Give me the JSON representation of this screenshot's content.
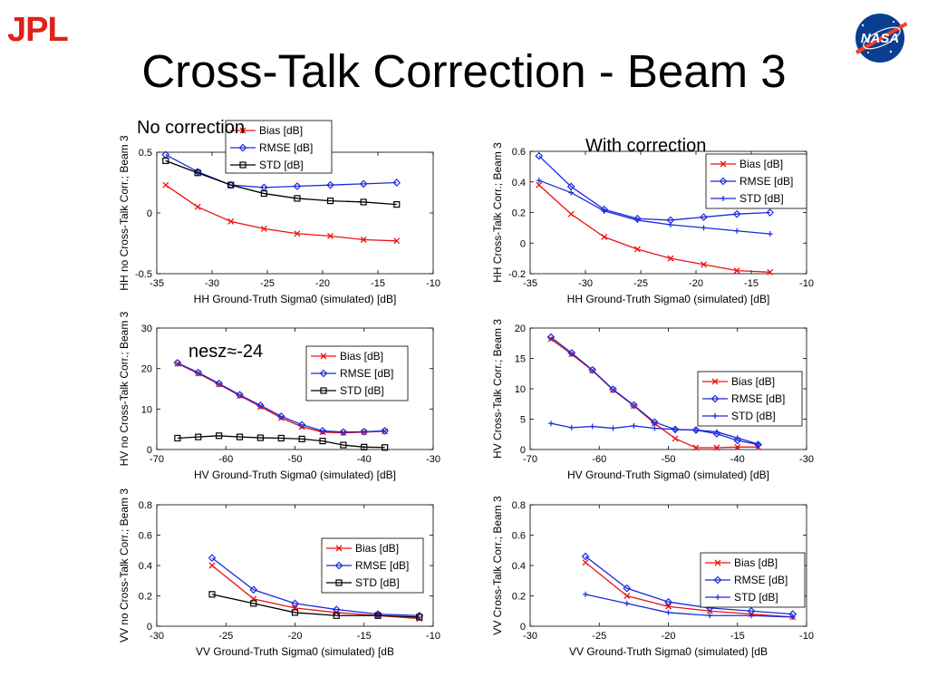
{
  "slide": {
    "title": "Cross-Talk Correction - Beam 3",
    "logos": {
      "left": "JPL",
      "right": "NASA"
    },
    "captions": {
      "no_correction": "No correction",
      "with_correction": "With correction",
      "nesz": "nesz≈-24"
    }
  },
  "colors": {
    "bias": "#ee1111",
    "rmse": "#1a2bdc",
    "std_black": "#000000",
    "std_blue": "#1a2bdc"
  },
  "chart_data": [
    {
      "id": "hh-no",
      "type": "line",
      "xlabel": "HH Ground-Truth Sigma0 (simulated) [dB]",
      "ylabel": "HH no Cross-Talk Corr.; Beam 3",
      "xlim": [
        -35,
        -10
      ],
      "ylim": [
        -0.5,
        0.5
      ],
      "xticks": [
        -35,
        -30,
        -25,
        -20,
        -15,
        -10
      ],
      "xticklabels": [
        "-35",
        "-30",
        "-25",
        "-20",
        "-15",
        "-10"
      ],
      "yticks": [
        -0.5,
        0,
        0.5
      ],
      "yticklabels": [
        "-0.5",
        "0",
        "0.5"
      ],
      "legend": "top",
      "series": [
        {
          "name": "Bias [dB]",
          "color": "#ee1111",
          "marker": "x",
          "x": [
            -34.2,
            -31.3,
            -28.3,
            -25.3,
            -22.3,
            -19.3,
            -16.3,
            -13.3
          ],
          "y": [
            0.23,
            0.05,
            -0.07,
            -0.13,
            -0.17,
            -0.19,
            -0.22,
            -0.23
          ]
        },
        {
          "name": "RMSE [dB]",
          "color": "#1a2bdc",
          "marker": "diamond",
          "x": [
            -34.2,
            -31.3,
            -28.3,
            -25.3,
            -22.3,
            -19.3,
            -16.3,
            -13.3
          ],
          "y": [
            0.48,
            0.34,
            0.23,
            0.21,
            0.22,
            0.23,
            0.24,
            0.25
          ]
        },
        {
          "name": "STD [dB]",
          "color": "#000000",
          "marker": "square",
          "x": [
            -34.2,
            -31.3,
            -28.3,
            -25.3,
            -22.3,
            -19.3,
            -16.3,
            -13.3
          ],
          "y": [
            0.43,
            0.33,
            0.23,
            0.16,
            0.12,
            0.1,
            0.09,
            0.07
          ]
        }
      ]
    },
    {
      "id": "hh-with",
      "type": "line",
      "xlabel": "HH Ground-Truth Sigma0 (simulated) [dB]",
      "ylabel": "HH Cross-Talk Corr.; Beam 3",
      "xlim": [
        -35,
        -10
      ],
      "ylim": [
        -0.2,
        0.6
      ],
      "xticks": [
        -35,
        -30,
        -25,
        -20,
        -15,
        -10
      ],
      "xticklabels": [
        "-35",
        "-30",
        "-25",
        "-20",
        "-15",
        "-10"
      ],
      "yticks": [
        -0.2,
        0,
        0.2,
        0.4,
        0.6
      ],
      "yticklabels": [
        "-0.2",
        "0",
        "0.2",
        "0.4",
        "0.6"
      ],
      "legend": "top-right",
      "series": [
        {
          "name": "Bias [dB]",
          "color": "#ee1111",
          "marker": "x",
          "x": [
            -34.2,
            -31.3,
            -28.3,
            -25.3,
            -22.3,
            -19.3,
            -16.3,
            -13.3
          ],
          "y": [
            0.38,
            0.19,
            0.04,
            -0.04,
            -0.1,
            -0.14,
            -0.18,
            -0.19
          ]
        },
        {
          "name": "RMSE [dB]",
          "color": "#1a2bdc",
          "marker": "diamond",
          "x": [
            -34.2,
            -31.3,
            -28.3,
            -25.3,
            -22.3,
            -19.3,
            -16.3,
            -13.3
          ],
          "y": [
            0.57,
            0.37,
            0.22,
            0.16,
            0.15,
            0.17,
            0.19,
            0.2
          ]
        },
        {
          "name": "STD [dB]",
          "color": "#1a2bdc",
          "marker": "plus",
          "x": [
            -34.2,
            -31.3,
            -28.3,
            -25.3,
            -22.3,
            -19.3,
            -16.3,
            -13.3
          ],
          "y": [
            0.41,
            0.33,
            0.21,
            0.15,
            0.12,
            0.1,
            0.08,
            0.06
          ]
        }
      ]
    },
    {
      "id": "hv-no",
      "type": "line",
      "xlabel": "HV Ground-Truth Sigma0 (simulated) [dB]",
      "ylabel": "HV no Cross-Talk Corr.; Beam 3",
      "xlim": [
        -70,
        -30
      ],
      "ylim": [
        0,
        30
      ],
      "xticks": [
        -70,
        -60,
        -50,
        -40,
        -30
      ],
      "xticklabels": [
        "-70",
        "-60",
        "-50",
        "-40",
        "-30"
      ],
      "yticks": [
        0,
        10,
        20,
        30
      ],
      "yticklabels": [
        "0",
        "10",
        "20",
        "30"
      ],
      "legend": "top-right",
      "series": [
        {
          "name": "Bias [dB]",
          "color": "#ee1111",
          "marker": "x",
          "x": [
            -67,
            -64,
            -61,
            -58,
            -55,
            -52,
            -49,
            -46,
            -43,
            -40,
            -37
          ],
          "y": [
            21.2,
            18.8,
            16.1,
            13.3,
            10.6,
            7.8,
            5.6,
            4.3,
            4.1,
            4.3,
            4.5
          ]
        },
        {
          "name": "RMSE [dB]",
          "color": "#1a2bdc",
          "marker": "diamond",
          "x": [
            -67,
            -64,
            -61,
            -58,
            -55,
            -52,
            -49,
            -46,
            -43,
            -40,
            -37
          ],
          "y": [
            21.4,
            19,
            16.3,
            13.5,
            10.9,
            8.2,
            6.1,
            4.6,
            4.3,
            4.4,
            4.6
          ]
        },
        {
          "name": "STD [dB]",
          "color": "#000000",
          "marker": "square",
          "x": [
            -67,
            -64,
            -61,
            -58,
            -55,
            -52,
            -49,
            -46,
            -43,
            -40,
            -37
          ],
          "y": [
            2.8,
            3.1,
            3.4,
            3.1,
            2.9,
            2.8,
            2.6,
            2.1,
            1.1,
            0.6,
            0.5
          ]
        }
      ]
    },
    {
      "id": "hv-with",
      "type": "line",
      "xlabel": "HV Ground-Truth Sigma0 (simulated) [dB]",
      "ylabel": "HV Cross-Talk Corr.; Beam 3",
      "xlim": [
        -70,
        -30
      ],
      "ylim": [
        0,
        20
      ],
      "xticks": [
        -70,
        -60,
        -50,
        -40,
        -30
      ],
      "xticklabels": [
        "-70",
        "-60",
        "-50",
        "-40",
        "-30"
      ],
      "yticks": [
        0,
        5,
        10,
        15,
        20
      ],
      "yticklabels": [
        "0",
        "5",
        "10",
        "15",
        "20"
      ],
      "legend": "right",
      "series": [
        {
          "name": "Bias [dB]",
          "color": "#ee1111",
          "marker": "x",
          "x": [
            -67,
            -64,
            -61,
            -58,
            -55,
            -52,
            -49,
            -46,
            -43,
            -40,
            -37
          ],
          "y": [
            18.2,
            15.7,
            13,
            9.8,
            7.2,
            4.3,
            1.8,
            0.3,
            0.3,
            0.4,
            0.4
          ]
        },
        {
          "name": "RMSE [dB]",
          "color": "#1a2bdc",
          "marker": "diamond",
          "x": [
            -67,
            -64,
            -61,
            -58,
            -55,
            -52,
            -49,
            -46,
            -43,
            -40,
            -37
          ],
          "y": [
            18.5,
            15.9,
            13.1,
            9.9,
            7.3,
            4.5,
            3.3,
            3.2,
            2.6,
            1.5,
            0.8
          ]
        },
        {
          "name": "STD [dB]",
          "color": "#1a2bdc",
          "marker": "plus",
          "x": [
            -67,
            -64,
            -61,
            -58,
            -55,
            -52,
            -49,
            -46,
            -43,
            -40,
            -37
          ],
          "y": [
            4.3,
            3.6,
            3.8,
            3.5,
            3.9,
            3.5,
            3.3,
            3.2,
            2.9,
            1.9,
            0.9
          ]
        }
      ]
    },
    {
      "id": "vv-no",
      "type": "line",
      "xlabel": "VV Ground-Truth Sigma0 (simulated) [dB",
      "ylabel": "VV no Cross-Talk Corr.; Beam 3",
      "xlim": [
        -30,
        -10
      ],
      "ylim": [
        0,
        0.8
      ],
      "xticks": [
        -30,
        -25,
        -20,
        -15,
        -10
      ],
      "xticklabels": [
        "-30",
        "-25",
        "-20",
        "-15",
        "-10"
      ],
      "yticks": [
        0,
        0.2,
        0.4,
        0.6,
        0.8
      ],
      "yticklabels": [
        "0",
        "0.2",
        "0.4",
        "0.6",
        "0.8"
      ],
      "legend": "right",
      "series": [
        {
          "name": "Bias [dB]",
          "color": "#ee1111",
          "marker": "x",
          "x": [
            -26,
            -23,
            -20,
            -17,
            -14,
            -11
          ],
          "y": [
            0.4,
            0.18,
            0.12,
            0.09,
            0.07,
            0.05
          ]
        },
        {
          "name": "RMSE [dB]",
          "color": "#1a2bdc",
          "marker": "diamond",
          "x": [
            -26,
            -23,
            -20,
            -17,
            -14,
            -11
          ],
          "y": [
            0.45,
            0.24,
            0.15,
            0.11,
            0.08,
            0.07
          ]
        },
        {
          "name": "STD [dB]",
          "color": "#000000",
          "marker": "square",
          "x": [
            -26,
            -23,
            -20,
            -17,
            -14,
            -11
          ],
          "y": [
            0.21,
            0.15,
            0.09,
            0.07,
            0.07,
            0.06
          ]
        }
      ]
    },
    {
      "id": "vv-with",
      "type": "line",
      "xlabel": "VV Ground-Truth Sigma0 (simulated) [dB",
      "ylabel": "VV Cross-Talk Corr.; Beam 3",
      "xlim": [
        -30,
        -10
      ],
      "ylim": [
        0,
        0.8
      ],
      "xticks": [
        -30,
        -25,
        -20,
        -15,
        -10
      ],
      "xticklabels": [
        "-30",
        "-25",
        "-20",
        "-15",
        "-10"
      ],
      "yticks": [
        0,
        0.2,
        0.4,
        0.6,
        0.8
      ],
      "yticklabels": [
        "0",
        "0.2",
        "0.4",
        "0.6",
        "0.8"
      ],
      "legend": "right",
      "series": [
        {
          "name": "Bias [dB]",
          "color": "#ee1111",
          "marker": "x",
          "x": [
            -26,
            -23,
            -20,
            -17,
            -14,
            -11
          ],
          "y": [
            0.42,
            0.2,
            0.13,
            0.1,
            0.08,
            0.06
          ]
        },
        {
          "name": "RMSE [dB]",
          "color": "#1a2bdc",
          "marker": "diamond",
          "x": [
            -26,
            -23,
            -20,
            -17,
            -14,
            -11
          ],
          "y": [
            0.46,
            0.25,
            0.16,
            0.12,
            0.1,
            0.08
          ]
        },
        {
          "name": "STD [dB]",
          "color": "#1a2bdc",
          "marker": "plus",
          "x": [
            -26,
            -23,
            -20,
            -17,
            -14,
            -11
          ],
          "y": [
            0.21,
            0.15,
            0.09,
            0.07,
            0.07,
            0.06
          ]
        }
      ]
    }
  ]
}
